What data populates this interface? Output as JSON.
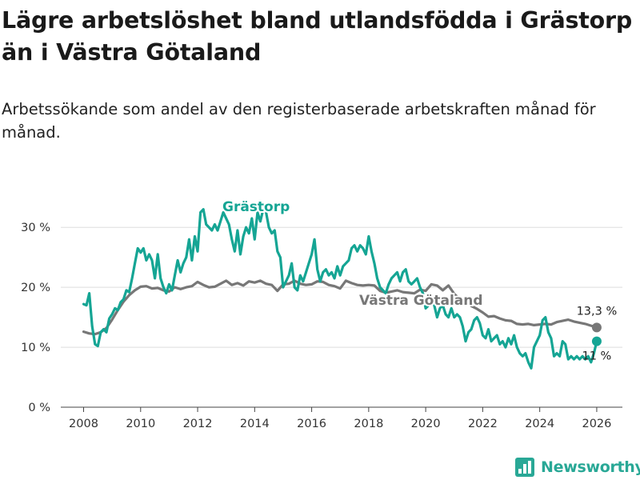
{
  "title": "Lägre arbetslöshet bland utlandsfödda i Grästorp än i Västra Götaland",
  "subtitle": "Arbetssökande som andel av den registerbaserade arbetskraften månad för månad.",
  "brand": {
    "name": "Newsworthy",
    "icon": "bar-chart-icon"
  },
  "colors": {
    "grastorp": "#15a594",
    "vastra": "#777777",
    "grid": "#dddddd",
    "axis": "#444444"
  },
  "chart_data": {
    "type": "line",
    "title": "Lägre arbetslöshet bland utlandsfödda i Grästorp än i Västra Götaland",
    "subtitle": "Arbetssökande som andel av den registerbaserade arbetskraften månad för månad.",
    "xlabel": "",
    "ylabel": "",
    "x_ticks": [
      2008,
      2010,
      2012,
      2014,
      2016,
      2018,
      2020,
      2022,
      2024,
      2026
    ],
    "x_tick_labels": [
      "2008",
      "2010",
      "2012",
      "2014",
      "2016",
      "2018",
      "2020",
      "2022",
      "2024",
      "2026"
    ],
    "y_ticks": [
      0,
      10,
      20,
      30
    ],
    "y_tick_labels": [
      "0 %",
      "10 %",
      "20 %",
      "30 %"
    ],
    "xlim": [
      2007.2,
      2026.9
    ],
    "ylim": [
      0,
      33.5
    ],
    "grid": true,
    "series": [
      {
        "name": "Västra Götaland",
        "label": "Västra Götaland",
        "color": "#777777",
        "end_label": "13,3 %",
        "end_value": 13.3,
        "end_x": 2026.0,
        "points": [
          [
            2008.0,
            12.6
          ],
          [
            2008.2,
            12.3
          ],
          [
            2008.4,
            12.2
          ],
          [
            2008.6,
            12.5
          ],
          [
            2008.8,
            13.2
          ],
          [
            2009.0,
            14.6
          ],
          [
            2009.2,
            16.2
          ],
          [
            2009.4,
            17.6
          ],
          [
            2009.6,
            18.7
          ],
          [
            2009.8,
            19.5
          ],
          [
            2010.0,
            20.1
          ],
          [
            2010.2,
            20.2
          ],
          [
            2010.4,
            19.8
          ],
          [
            2010.6,
            19.9
          ],
          [
            2010.8,
            19.5
          ],
          [
            2011.0,
            19.3
          ],
          [
            2011.2,
            20.0
          ],
          [
            2011.4,
            19.7
          ],
          [
            2011.6,
            20.0
          ],
          [
            2011.8,
            20.2
          ],
          [
            2012.0,
            20.9
          ],
          [
            2012.2,
            20.4
          ],
          [
            2012.4,
            20.0
          ],
          [
            2012.6,
            20.1
          ],
          [
            2012.8,
            20.6
          ],
          [
            2013.0,
            21.1
          ],
          [
            2013.2,
            20.4
          ],
          [
            2013.4,
            20.7
          ],
          [
            2013.6,
            20.3
          ],
          [
            2013.8,
            21.0
          ],
          [
            2014.0,
            20.8
          ],
          [
            2014.2,
            21.1
          ],
          [
            2014.4,
            20.6
          ],
          [
            2014.6,
            20.4
          ],
          [
            2014.8,
            19.4
          ],
          [
            2015.0,
            20.5
          ],
          [
            2015.2,
            20.6
          ],
          [
            2015.4,
            21.1
          ],
          [
            2015.6,
            20.6
          ],
          [
            2015.8,
            20.4
          ],
          [
            2016.0,
            20.5
          ],
          [
            2016.2,
            21.0
          ],
          [
            2016.4,
            20.9
          ],
          [
            2016.6,
            20.4
          ],
          [
            2016.8,
            20.2
          ],
          [
            2017.0,
            19.8
          ],
          [
            2017.2,
            21.1
          ],
          [
            2017.4,
            20.7
          ],
          [
            2017.6,
            20.4
          ],
          [
            2017.8,
            20.3
          ],
          [
            2018.0,
            20.4
          ],
          [
            2018.2,
            20.3
          ],
          [
            2018.4,
            19.4
          ],
          [
            2018.6,
            19.1
          ],
          [
            2018.8,
            19.3
          ],
          [
            2019.0,
            19.5
          ],
          [
            2019.2,
            19.2
          ],
          [
            2019.4,
            19.1
          ],
          [
            2019.6,
            19.0
          ],
          [
            2019.8,
            19.6
          ],
          [
            2020.0,
            19.4
          ],
          [
            2020.2,
            20.5
          ],
          [
            2020.4,
            20.3
          ],
          [
            2020.6,
            19.5
          ],
          [
            2020.8,
            20.3
          ],
          [
            2021.0,
            18.9
          ],
          [
            2021.2,
            18.0
          ],
          [
            2021.4,
            17.6
          ],
          [
            2021.6,
            16.9
          ],
          [
            2021.8,
            16.4
          ],
          [
            2022.0,
            15.8
          ],
          [
            2022.2,
            15.1
          ],
          [
            2022.4,
            15.2
          ],
          [
            2022.6,
            14.8
          ],
          [
            2022.8,
            14.5
          ],
          [
            2023.0,
            14.4
          ],
          [
            2023.2,
            13.9
          ],
          [
            2023.4,
            13.8
          ],
          [
            2023.6,
            13.9
          ],
          [
            2023.8,
            13.7
          ],
          [
            2024.0,
            13.8
          ],
          [
            2024.2,
            13.9
          ],
          [
            2024.4,
            13.8
          ],
          [
            2024.6,
            14.2
          ],
          [
            2024.8,
            14.4
          ],
          [
            2025.0,
            14.6
          ],
          [
            2025.2,
            14.3
          ],
          [
            2025.4,
            14.1
          ],
          [
            2025.6,
            13.9
          ],
          [
            2025.8,
            13.6
          ],
          [
            2026.0,
            13.3
          ]
        ]
      },
      {
        "name": "Grästorp",
        "label": "Grästorp",
        "color": "#15a594",
        "end_label": "11 %",
        "end_value": 11.0,
        "end_x": 2026.0,
        "points": [
          [
            2008.0,
            17.2
          ],
          [
            2008.1,
            17.0
          ],
          [
            2008.2,
            19.0
          ],
          [
            2008.3,
            13.5
          ],
          [
            2008.4,
            10.5
          ],
          [
            2008.5,
            10.2
          ],
          [
            2008.6,
            12.5
          ],
          [
            2008.7,
            13.0
          ],
          [
            2008.8,
            12.5
          ],
          [
            2008.9,
            14.8
          ],
          [
            2009.0,
            15.5
          ],
          [
            2009.1,
            16.5
          ],
          [
            2009.2,
            16.2
          ],
          [
            2009.3,
            17.5
          ],
          [
            2009.4,
            18.0
          ],
          [
            2009.5,
            19.5
          ],
          [
            2009.6,
            19.2
          ],
          [
            2009.7,
            21.5
          ],
          [
            2009.8,
            24.0
          ],
          [
            2009.9,
            26.5
          ],
          [
            2010.0,
            25.8
          ],
          [
            2010.1,
            26.5
          ],
          [
            2010.2,
            24.5
          ],
          [
            2010.3,
            25.5
          ],
          [
            2010.4,
            24.5
          ],
          [
            2010.5,
            21.5
          ],
          [
            2010.6,
            25.5
          ],
          [
            2010.7,
            21.5
          ],
          [
            2010.8,
            20.0
          ],
          [
            2010.9,
            19.0
          ],
          [
            2011.0,
            20.5
          ],
          [
            2011.1,
            19.5
          ],
          [
            2011.2,
            22.0
          ],
          [
            2011.3,
            24.5
          ],
          [
            2011.4,
            22.5
          ],
          [
            2011.5,
            24.0
          ],
          [
            2011.6,
            25.0
          ],
          [
            2011.7,
            28.0
          ],
          [
            2011.8,
            24.5
          ],
          [
            2011.9,
            28.5
          ],
          [
            2012.0,
            26.0
          ],
          [
            2012.1,
            32.5
          ],
          [
            2012.2,
            33.0
          ],
          [
            2012.3,
            30.5
          ],
          [
            2012.4,
            30.0
          ],
          [
            2012.5,
            29.5
          ],
          [
            2012.6,
            30.5
          ],
          [
            2012.7,
            29.5
          ],
          [
            2012.8,
            31.0
          ],
          [
            2012.9,
            32.5
          ],
          [
            2013.0,
            31.5
          ],
          [
            2013.1,
            30.5
          ],
          [
            2013.2,
            28.0
          ],
          [
            2013.3,
            26.0
          ],
          [
            2013.4,
            29.5
          ],
          [
            2013.5,
            25.5
          ],
          [
            2013.6,
            28.5
          ],
          [
            2013.7,
            30.0
          ],
          [
            2013.8,
            29.0
          ],
          [
            2013.9,
            31.5
          ],
          [
            2014.0,
            28.0
          ],
          [
            2014.1,
            32.5
          ],
          [
            2014.2,
            31.0
          ],
          [
            2014.3,
            33.0
          ],
          [
            2014.4,
            32.5
          ],
          [
            2014.5,
            30.0
          ],
          [
            2014.6,
            29.0
          ],
          [
            2014.7,
            29.5
          ],
          [
            2014.8,
            26.0
          ],
          [
            2014.9,
            25.0
          ],
          [
            2015.0,
            20.0
          ],
          [
            2015.1,
            21.0
          ],
          [
            2015.2,
            22.0
          ],
          [
            2015.3,
            24.0
          ],
          [
            2015.4,
            20.0
          ],
          [
            2015.5,
            19.5
          ],
          [
            2015.6,
            22.0
          ],
          [
            2015.7,
            21.0
          ],
          [
            2015.8,
            22.5
          ],
          [
            2015.9,
            24.0
          ],
          [
            2016.0,
            25.5
          ],
          [
            2016.1,
            28.0
          ],
          [
            2016.2,
            23.0
          ],
          [
            2016.3,
            21.0
          ],
          [
            2016.4,
            22.5
          ],
          [
            2016.5,
            23.0
          ],
          [
            2016.6,
            22.0
          ],
          [
            2016.7,
            22.5
          ],
          [
            2016.8,
            21.5
          ],
          [
            2016.9,
            23.5
          ],
          [
            2017.0,
            22.0
          ],
          [
            2017.1,
            23.5
          ],
          [
            2017.2,
            24.0
          ],
          [
            2017.3,
            24.5
          ],
          [
            2017.4,
            26.5
          ],
          [
            2017.5,
            27.0
          ],
          [
            2017.6,
            26.0
          ],
          [
            2017.7,
            27.0
          ],
          [
            2017.8,
            26.5
          ],
          [
            2017.9,
            25.5
          ],
          [
            2018.0,
            28.5
          ],
          [
            2018.1,
            26.0
          ],
          [
            2018.2,
            24.0
          ],
          [
            2018.3,
            21.5
          ],
          [
            2018.4,
            20.0
          ],
          [
            2018.5,
            19.5
          ],
          [
            2018.6,
            19.0
          ],
          [
            2018.7,
            20.5
          ],
          [
            2018.8,
            21.5
          ],
          [
            2018.9,
            22.0
          ],
          [
            2019.0,
            22.5
          ],
          [
            2019.1,
            21.0
          ],
          [
            2019.2,
            22.5
          ],
          [
            2019.3,
            23.0
          ],
          [
            2019.4,
            21.0
          ],
          [
            2019.5,
            20.5
          ],
          [
            2019.6,
            21.0
          ],
          [
            2019.7,
            21.5
          ],
          [
            2019.8,
            20.0
          ],
          [
            2019.9,
            19.0
          ],
          [
            2020.0,
            16.5
          ],
          [
            2020.1,
            17.0
          ],
          [
            2020.2,
            18.5
          ],
          [
            2020.3,
            17.0
          ],
          [
            2020.4,
            15.0
          ],
          [
            2020.5,
            16.5
          ],
          [
            2020.6,
            17.0
          ],
          [
            2020.7,
            15.5
          ],
          [
            2020.8,
            15.0
          ],
          [
            2020.9,
            16.5
          ],
          [
            2021.0,
            15.0
          ],
          [
            2021.1,
            15.5
          ],
          [
            2021.2,
            15.0
          ],
          [
            2021.3,
            13.5
          ],
          [
            2021.4,
            11.0
          ],
          [
            2021.5,
            12.5
          ],
          [
            2021.6,
            13.0
          ],
          [
            2021.7,
            14.5
          ],
          [
            2021.8,
            15.0
          ],
          [
            2021.9,
            14.0
          ],
          [
            2022.0,
            12.0
          ],
          [
            2022.1,
            11.5
          ],
          [
            2022.2,
            13.0
          ],
          [
            2022.3,
            11.0
          ],
          [
            2022.4,
            11.5
          ],
          [
            2022.5,
            12.0
          ],
          [
            2022.6,
            10.5
          ],
          [
            2022.7,
            11.0
          ],
          [
            2022.8,
            10.0
          ],
          [
            2022.9,
            11.5
          ],
          [
            2023.0,
            10.5
          ],
          [
            2023.1,
            12.0
          ],
          [
            2023.2,
            10.0
          ],
          [
            2023.3,
            9.0
          ],
          [
            2023.4,
            8.5
          ],
          [
            2023.5,
            9.0
          ],
          [
            2023.6,
            7.5
          ],
          [
            2023.7,
            6.5
          ],
          [
            2023.8,
            10.0
          ],
          [
            2023.9,
            11.0
          ],
          [
            2024.0,
            12.0
          ],
          [
            2024.1,
            14.5
          ],
          [
            2024.2,
            15.0
          ],
          [
            2024.3,
            12.5
          ],
          [
            2024.4,
            11.5
          ],
          [
            2024.5,
            8.5
          ],
          [
            2024.6,
            9.0
          ],
          [
            2024.7,
            8.5
          ],
          [
            2024.8,
            11.0
          ],
          [
            2024.9,
            10.5
          ],
          [
            2025.0,
            8.0
          ],
          [
            2025.1,
            8.5
          ],
          [
            2025.2,
            8.0
          ],
          [
            2025.3,
            8.5
          ],
          [
            2025.4,
            8.0
          ],
          [
            2025.5,
            8.5
          ],
          [
            2025.6,
            8.0
          ],
          [
            2025.7,
            8.5
          ],
          [
            2025.8,
            7.5
          ],
          [
            2025.9,
            9.0
          ],
          [
            2026.0,
            11.0
          ]
        ]
      }
    ]
  }
}
